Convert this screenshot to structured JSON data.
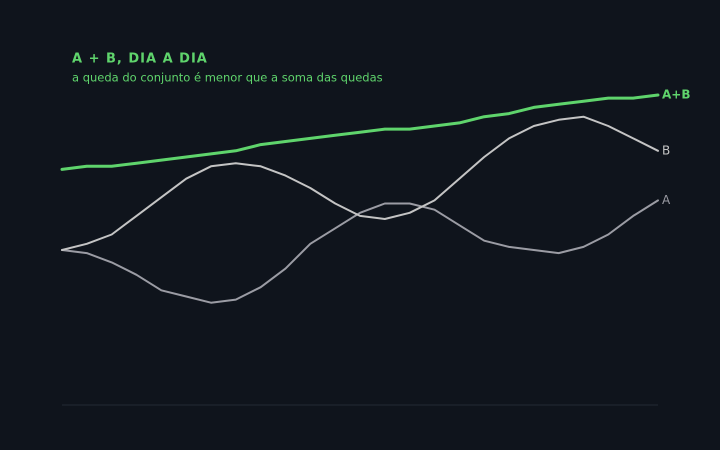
{
  "chart_data": {
    "type": "line",
    "title": "A + B, DIA A DIA",
    "subtitle": "a queda do conjunto é menor que a soma das quedas",
    "x": [
      0,
      1,
      2,
      3,
      4,
      5,
      6,
      7,
      8,
      9,
      10,
      11,
      12,
      13,
      14,
      15,
      16,
      17,
      18,
      19,
      20,
      21,
      22,
      23,
      24
    ],
    "xlim": [
      0,
      24
    ],
    "ylim": [
      0,
      100
    ],
    "series": [
      {
        "name": "A",
        "color": "#9b9ca4",
        "values": [
          50,
          49,
          46,
          42,
          37,
          35,
          33,
          34,
          38,
          44,
          52,
          57,
          62,
          65,
          65,
          63,
          58,
          53,
          51,
          50,
          49,
          51,
          55,
          61,
          66
        ]
      },
      {
        "name": "B",
        "color": "#c4c4c4",
        "values": [
          50,
          52,
          55,
          61,
          67,
          73,
          77,
          78,
          77,
          74,
          70,
          65,
          61,
          60,
          62,
          66,
          73,
          80,
          86,
          90,
          92,
          93,
          90,
          86,
          82
        ]
      },
      {
        "name": "A+B",
        "color": "#5fd46c",
        "values": [
          76,
          77,
          77,
          78,
          79,
          80,
          81,
          82,
          84,
          85,
          86,
          87,
          88,
          89,
          89,
          90,
          91,
          93,
          94,
          96,
          97,
          98,
          99,
          99,
          100
        ]
      }
    ]
  }
}
